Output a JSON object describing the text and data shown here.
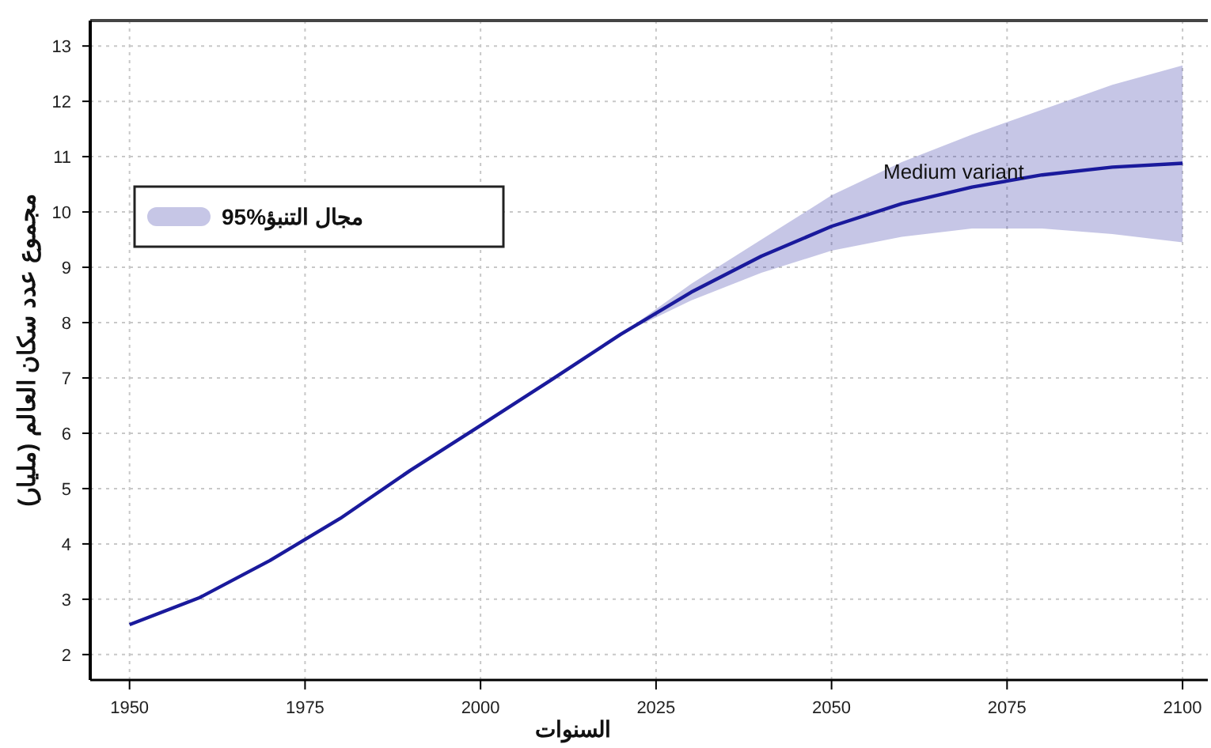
{
  "chart_data": {
    "type": "line",
    "xlabel": "السنوات",
    "ylabel": "مجموع عدد سكان العالم (مليار)",
    "annotations": [
      "Medium variant"
    ],
    "x": [
      1950,
      1960,
      1970,
      1980,
      1990,
      2000,
      2010,
      2020,
      2030,
      2040,
      2050,
      2060,
      2070,
      2080,
      2090,
      2100
    ],
    "xlim": [
      1944.4,
      2103.6
    ],
    "xticks": [
      1950,
      1975,
      2000,
      2025,
      2050,
      2075,
      2100
    ],
    "ylim": [
      1.54,
      13.46
    ],
    "yticks": [
      2,
      3,
      4,
      5,
      6,
      7,
      8,
      9,
      10,
      11,
      12,
      13
    ],
    "grid": true,
    "legend": "top left",
    "series": [
      {
        "type": "line",
        "name": "95%مجال التنبؤ",
        "color": "#1a1a9c",
        "values": [
          2.54,
          3.03,
          3.7,
          4.46,
          5.33,
          6.14,
          6.96,
          7.79,
          8.55,
          9.2,
          9.74,
          10.15,
          10.45,
          10.67,
          10.81,
          10.88
        ],
        "lower": [
          null,
          null,
          null,
          null,
          null,
          null,
          null,
          7.79,
          8.4,
          8.9,
          9.3,
          9.55,
          9.7,
          9.7,
          9.6,
          9.45
        ],
        "upper": [
          null,
          null,
          null,
          null,
          null,
          null,
          null,
          7.79,
          8.7,
          9.5,
          10.3,
          10.9,
          11.4,
          11.85,
          12.3,
          12.65
        ]
      }
    ]
  }
}
